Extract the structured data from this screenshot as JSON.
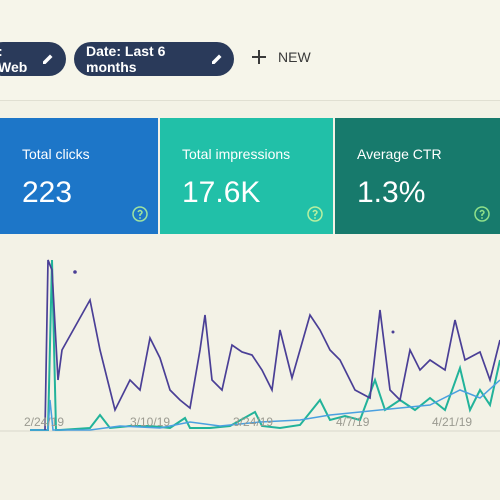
{
  "filters": [
    ": Web",
    "Date: Last 6 months"
  ],
  "new_button": "NEW",
  "cards": [
    {
      "label": "Total clicks",
      "value": "223"
    },
    {
      "label": "Total impressions",
      "value": "17.6K"
    },
    {
      "label": "Average CTR",
      "value": "1.3%"
    }
  ],
  "chart": {
    "x_labels": [
      "2/24/19",
      "3/10/19",
      "3/24/19",
      "4/7/19",
      "4/21/19"
    ]
  }
}
